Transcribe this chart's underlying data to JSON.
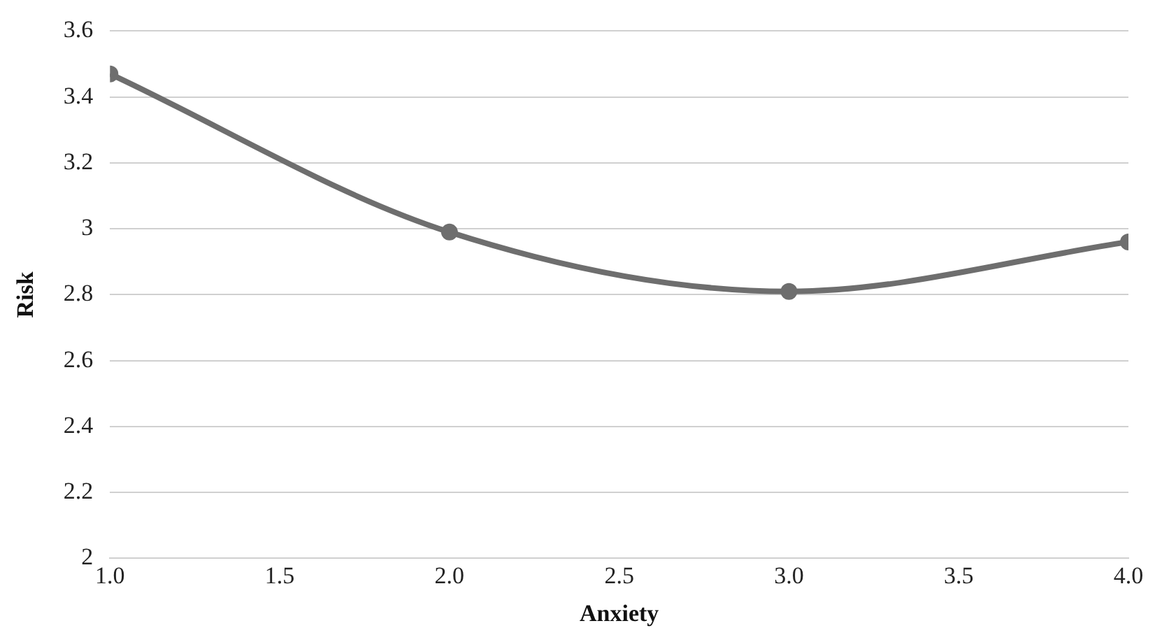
{
  "chart_data": {
    "type": "line",
    "xlabel": "Anxiety",
    "ylabel": "Risk",
    "x": [
      1,
      2,
      3,
      4
    ],
    "series": [
      {
        "color": "#6e6e6e",
        "values": [
          3.47,
          2.99,
          2.81,
          2.96
        ]
      }
    ],
    "xlim": [
      1,
      4
    ],
    "xticks": [
      {
        "value": 1,
        "label": "1.0"
      },
      {
        "value": 1.5,
        "label": "1.5"
      },
      {
        "value": 2,
        "label": "2.0"
      },
      {
        "value": 2.5,
        "label": "2.5"
      },
      {
        "value": 3,
        "label": "3.0"
      },
      {
        "value": 3.5,
        "label": "3.5"
      },
      {
        "value": 4,
        "label": "4.0"
      }
    ],
    "ylim": [
      2,
      3.6
    ],
    "yticks": [
      2,
      2.2,
      2.4,
      2.6,
      2.8,
      3,
      3.2,
      3.4,
      3.6
    ],
    "grid": "y",
    "legend": false,
    "marker": "circle",
    "line_style": "solid"
  }
}
